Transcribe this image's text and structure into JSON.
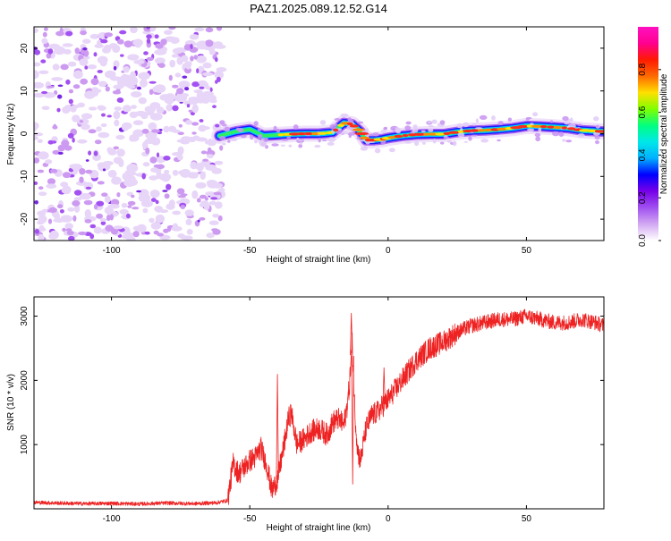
{
  "chart_data": [
    {
      "id": "spectrogram",
      "type": "heatmap",
      "title": "PAZ1.2025.089.12.52.G14",
      "xlabel": "Height of straight line (km)",
      "ylabel": "Frequency (Hz)",
      "xlim": [
        -128,
        78
      ],
      "ylim": [
        -25,
        25
      ],
      "xticks": [
        -100,
        -50,
        0,
        50
      ],
      "yticks": [
        -20,
        -10,
        0,
        10,
        20
      ],
      "noise_region": {
        "x_range": [
          -128,
          -60
        ],
        "y_range": [
          -25,
          25
        ]
      },
      "signal_ridge": {
        "x": [
          -61,
          -55,
          -50,
          -45,
          -40,
          -35,
          -30,
          -25,
          -20,
          -16,
          -13,
          -10,
          -8,
          -5,
          -2,
          0,
          5,
          10,
          15,
          20,
          25,
          30,
          35,
          40,
          45,
          50,
          55,
          60,
          65,
          70,
          75,
          78
        ],
        "y": [
          -0.5,
          0.5,
          1.0,
          -0.5,
          -0.3,
          -0.1,
          0.0,
          0.0,
          0.3,
          2.5,
          2.2,
          0.5,
          -1.5,
          -1.5,
          -1.3,
          -1.0,
          -0.5,
          -0.2,
          -0.1,
          -0.1,
          0.4,
          0.7,
          0.8,
          1.0,
          1.3,
          1.8,
          1.7,
          1.5,
          1.3,
          0.8,
          0.6,
          0.5
        ]
      },
      "colorbar": {
        "label": "Normalized spectral amplitude",
        "range": [
          0,
          1
        ],
        "ticks": [
          "0.0",
          "0.2",
          "0.4",
          "0.6",
          "0.8"
        ],
        "colors": [
          "#ffffff",
          "#d2a8f2",
          "#a050f0",
          "#7700e8",
          "#0000ff",
          "#00b0ff",
          "#00e8e8",
          "#00ff80",
          "#80ff00",
          "#ffe000",
          "#ff6a00",
          "#ff1a00",
          "#ff0090",
          "#ff10c0"
        ]
      }
    },
    {
      "id": "snr",
      "type": "line",
      "xlabel": "Height of straight line (km)",
      "ylabel": "SNR (10 * v/v)",
      "xlim": [
        -128,
        78
      ],
      "ylim": [
        0,
        3300
      ],
      "xticks": [
        -100,
        -50,
        0,
        50
      ],
      "yticks": [
        1000,
        2000,
        3000
      ],
      "line_color": "#ee2222",
      "x": [
        -128,
        -120,
        -110,
        -100,
        -90,
        -80,
        -70,
        -62,
        -58,
        -56,
        -54,
        -52,
        -50,
        -48,
        -46,
        -44,
        -42,
        -40,
        -38,
        -36,
        -35,
        -33,
        -30,
        -28,
        -25,
        -22,
        -20,
        -18,
        -16,
        -15,
        -14,
        -13,
        -12,
        -11,
        -10,
        -8,
        -6,
        -4,
        -2,
        0,
        5,
        10,
        15,
        20,
        25,
        30,
        35,
        40,
        45,
        50,
        55,
        60,
        65,
        70,
        75,
        78
      ],
      "y": [
        100,
        90,
        80,
        85,
        75,
        90,
        80,
        95,
        130,
        700,
        550,
        650,
        750,
        800,
        950,
        700,
        280,
        450,
        900,
        1400,
        1500,
        1000,
        1100,
        1200,
        1250,
        1150,
        1350,
        1400,
        1300,
        1550,
        1900,
        2600,
        1500,
        900,
        750,
        1250,
        1450,
        1500,
        1600,
        1700,
        2000,
        2300,
        2500,
        2600,
        2750,
        2850,
        2900,
        2950,
        2950,
        3000,
        2950,
        2900,
        2900,
        2950,
        2900,
        2850
      ],
      "spikes": [
        {
          "x": -40,
          "y": 2100
        },
        {
          "x": -13.3,
          "y": 3050
        },
        {
          "x": -12.8,
          "y": 380
        },
        {
          "x": -1.5,
          "y": 2200
        }
      ]
    }
  ]
}
